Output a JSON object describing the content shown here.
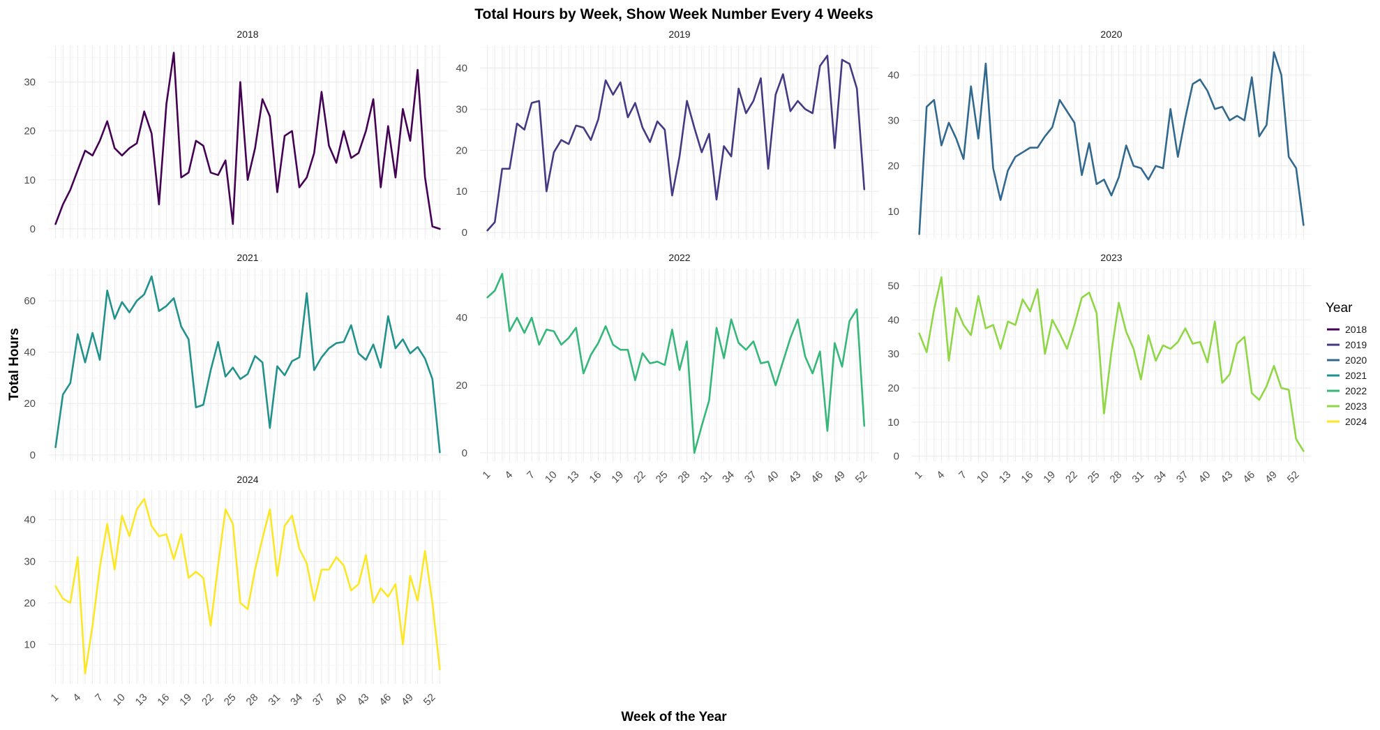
{
  "chart_data": {
    "type": "line",
    "title": "Total Hours by Week, Show Week Number Every 4 Weeks",
    "xlabel": "Week of the Year",
    "ylabel": "Total Hours",
    "legend_title": "Year",
    "legend_position": "right",
    "grid": true,
    "x_tick_labels": [
      "1",
      "4",
      "7",
      "10",
      "13",
      "16",
      "19",
      "22",
      "25",
      "28",
      "31",
      "34",
      "37",
      "40",
      "43",
      "46",
      "49",
      "52"
    ],
    "facets": [
      {
        "name": "2018",
        "color": "#440154",
        "ylim": [
          -2,
          37.5
        ],
        "yticks": [
          0,
          10,
          20,
          30
        ],
        "x": [
          1,
          2,
          3,
          4,
          5,
          6,
          7,
          8,
          9,
          10,
          11,
          12,
          13,
          14,
          15,
          16,
          17,
          18,
          19,
          20,
          21,
          22,
          23,
          24,
          25,
          26,
          27,
          28,
          29,
          30,
          31,
          32,
          33,
          34,
          35,
          36,
          37,
          38,
          39,
          40,
          41,
          42,
          43,
          44,
          45,
          46,
          47,
          48,
          49,
          50,
          51,
          52,
          53
        ],
        "values": [
          1,
          5,
          8,
          12,
          16,
          15,
          18,
          22,
          16.5,
          15,
          16.5,
          17.5,
          24,
          19.5,
          5,
          25.5,
          36,
          10.5,
          11.5,
          18,
          17,
          11.5,
          11,
          14,
          1,
          30,
          10,
          16.5,
          26.5,
          23,
          7.5,
          19,
          20,
          8.5,
          10.5,
          15.5,
          28,
          17,
          13.5,
          20,
          14.5,
          15.5,
          20,
          26.5,
          8.5,
          21,
          10.5,
          24.5,
          18,
          32.5,
          10.5,
          0.5,
          0
        ]
      },
      {
        "name": "2019",
        "color": "#443983",
        "ylim": [
          -1.5,
          45.5
        ],
        "yticks": [
          0,
          10,
          20,
          30,
          40
        ],
        "x": [
          1,
          2,
          3,
          4,
          5,
          6,
          7,
          8,
          9,
          10,
          11,
          12,
          13,
          14,
          15,
          16,
          17,
          18,
          19,
          20,
          21,
          22,
          23,
          24,
          25,
          26,
          27,
          28,
          29,
          30,
          31,
          32,
          33,
          34,
          35,
          36,
          37,
          38,
          39,
          40,
          41,
          42,
          43,
          44,
          45,
          46,
          47,
          48,
          49,
          50,
          51,
          52
        ],
        "values": [
          0.5,
          2.5,
          15.5,
          15.5,
          26.5,
          25,
          31.5,
          32,
          10,
          19.5,
          22.5,
          21.5,
          26,
          25.5,
          22.5,
          27.5,
          37,
          33.5,
          36.5,
          28,
          31.5,
          25.5,
          22,
          27,
          25,
          9,
          18.5,
          32,
          25.5,
          19.5,
          24,
          8,
          21,
          18.5,
          35,
          29,
          32,
          37.5,
          15.5,
          33.5,
          38.5,
          29.5,
          32,
          30,
          29,
          40.5,
          43,
          20.5,
          42,
          41,
          35,
          10.5
        ]
      },
      {
        "name": "2020",
        "color": "#31688e",
        "ylim": [
          4,
          46.5
        ],
        "yticks": [
          10,
          20,
          30,
          40
        ],
        "x": [
          1,
          2,
          3,
          4,
          5,
          6,
          7,
          8,
          9,
          10,
          11,
          12,
          13,
          14,
          15,
          16,
          17,
          18,
          19,
          20,
          21,
          22,
          23,
          24,
          25,
          26,
          27,
          28,
          29,
          30,
          31,
          32,
          33,
          34,
          35,
          36,
          37,
          38,
          39,
          40,
          41,
          42,
          43,
          44,
          45,
          46,
          47,
          48,
          49,
          50,
          51,
          52,
          53
        ],
        "values": [
          5,
          33,
          34.5,
          24.5,
          29.5,
          26,
          21.5,
          37.5,
          26,
          42.5,
          19.5,
          12.5,
          19,
          22,
          23,
          24,
          24,
          26.5,
          28.5,
          34.5,
          32,
          29.5,
          18,
          25,
          16,
          17,
          13.5,
          17.5,
          24.5,
          20,
          19.5,
          17,
          20,
          19.5,
          32.5,
          22,
          30.5,
          38,
          39,
          36.5,
          32.5,
          33,
          30,
          31,
          30,
          39.5,
          26.5,
          29,
          45,
          40,
          22,
          19.5,
          7
        ]
      },
      {
        "name": "2021",
        "color": "#21918c",
        "ylim": [
          -2.5,
          72.5
        ],
        "yticks": [
          0,
          20,
          40,
          60
        ],
        "x": [
          1,
          2,
          3,
          4,
          5,
          6,
          7,
          8,
          9,
          10,
          11,
          12,
          13,
          14,
          15,
          16,
          17,
          18,
          19,
          20,
          21,
          22,
          23,
          24,
          25,
          26,
          27,
          28,
          29,
          30,
          31,
          32,
          33,
          34,
          35,
          36,
          37,
          38,
          39,
          40,
          41,
          42,
          43,
          44,
          45,
          46,
          47,
          48,
          49,
          50,
          51,
          52,
          53
        ],
        "values": [
          3,
          23.5,
          28,
          47,
          36,
          47.5,
          37,
          64,
          53,
          59.5,
          55.5,
          60,
          62.5,
          69.5,
          56,
          58,
          61,
          50,
          45,
          18.5,
          19.5,
          33,
          44,
          30.5,
          34,
          29.5,
          31.5,
          38.5,
          36,
          10.5,
          34.5,
          31,
          36.5,
          38,
          63,
          33,
          38,
          41.5,
          43.5,
          44,
          50.5,
          39.5,
          37,
          43,
          34,
          54,
          41.5,
          45,
          39.5,
          42,
          37.5,
          29.5,
          1
        ]
      },
      {
        "name": "2022",
        "color": "#35b779",
        "ylim": [
          -2.5,
          54.5
        ],
        "yticks": [
          0,
          20,
          40
        ],
        "x": [
          1,
          2,
          3,
          4,
          5,
          6,
          7,
          8,
          9,
          10,
          11,
          12,
          13,
          14,
          15,
          16,
          17,
          18,
          19,
          20,
          21,
          22,
          23,
          24,
          25,
          26,
          27,
          28,
          29,
          30,
          31,
          32,
          33,
          34,
          35,
          36,
          37,
          38,
          39,
          40,
          41,
          42,
          43,
          44,
          45,
          46,
          47,
          48,
          49,
          50,
          51,
          52
        ],
        "values": [
          46,
          48,
          53,
          36,
          40,
          35.5,
          40,
          32,
          36.5,
          36,
          32,
          34,
          37,
          23.5,
          29,
          32.5,
          37.5,
          32,
          30.5,
          30.5,
          21.5,
          29.5,
          26.5,
          27,
          26,
          36.5,
          24.5,
          33,
          0,
          8,
          15.5,
          37,
          28,
          39.5,
          32.5,
          30.5,
          33,
          26.5,
          27,
          20,
          27,
          34,
          39.5,
          28.5,
          23.5,
          30,
          6.5,
          32.5,
          25.5,
          39,
          42.5,
          8
        ]
      },
      {
        "name": "2023",
        "color": "#8fd744",
        "ylim": [
          -1.5,
          55
        ],
        "yticks": [
          0,
          10,
          20,
          30,
          40,
          50
        ],
        "x": [
          1,
          2,
          3,
          4,
          5,
          6,
          7,
          8,
          9,
          10,
          11,
          12,
          13,
          14,
          15,
          16,
          17,
          18,
          19,
          20,
          21,
          22,
          23,
          24,
          25,
          26,
          27,
          28,
          29,
          30,
          31,
          32,
          33,
          34,
          35,
          36,
          37,
          38,
          39,
          40,
          41,
          42,
          43,
          44,
          45,
          46,
          47,
          48,
          49,
          50,
          51,
          52,
          53
        ],
        "values": [
          36,
          30.5,
          43,
          52.5,
          28,
          43.5,
          38.5,
          35.5,
          47,
          37.5,
          38.5,
          31.5,
          39.5,
          38.5,
          46,
          42.5,
          49,
          30,
          40,
          36,
          31.5,
          38.5,
          46.5,
          48,
          42,
          12.5,
          30.5,
          45,
          36.5,
          31.5,
          22.5,
          35.5,
          28,
          32.5,
          31.5,
          33.5,
          37.5,
          33,
          33.5,
          27.5,
          39.5,
          21.5,
          24,
          33,
          35,
          18.5,
          16.5,
          20.5,
          26.5,
          20,
          19.5,
          5,
          1.5
        ]
      },
      {
        "name": "2024",
        "color": "#fde725",
        "ylim": [
          0.5,
          47
        ],
        "yticks": [
          10,
          20,
          30,
          40
        ],
        "x": [
          1,
          2,
          3,
          4,
          5,
          6,
          7,
          8,
          9,
          10,
          11,
          12,
          13,
          14,
          15,
          16,
          17,
          18,
          19,
          20,
          21,
          22,
          23,
          24,
          25,
          26,
          27,
          28,
          29,
          30,
          31,
          32,
          33,
          34,
          35,
          36,
          37,
          38,
          39,
          40,
          41,
          42,
          43,
          44,
          45,
          46,
          47,
          48,
          49,
          50,
          51,
          52,
          53
        ],
        "values": [
          24,
          21,
          20,
          31,
          3,
          14.5,
          28.5,
          39,
          28,
          41,
          36,
          42.5,
          45,
          38.5,
          36,
          36.5,
          30.5,
          36.5,
          26,
          27.5,
          26,
          14.5,
          29,
          42.5,
          39,
          20,
          18.5,
          28,
          35.5,
          42.5,
          26.5,
          38.5,
          41,
          33,
          29.5,
          20.5,
          28,
          28,
          31,
          29,
          23,
          24.5,
          31.5,
          20,
          23.5,
          21.5,
          24.5,
          10,
          26.5,
          20.5,
          32.5,
          20,
          4
        ]
      }
    ]
  }
}
